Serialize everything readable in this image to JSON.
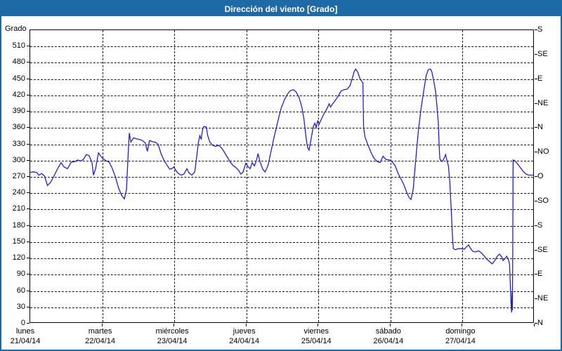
{
  "title": "Dirección del viento [Grado]",
  "axes": {
    "y_left_label": "Grado",
    "y_left_tick_labels": [
      "510",
      "480",
      "450",
      "420",
      "390",
      "360",
      "330",
      "300",
      "270",
      "240",
      "210",
      "180",
      "150",
      "120",
      "90",
      "60",
      "30",
      "0"
    ],
    "y_right_tick_labels_top_to_bottom": [
      "S",
      "SE",
      "E",
      "NE",
      "N",
      "NO",
      "O",
      "SO",
      "S",
      "SE",
      "E",
      "NE",
      "N"
    ],
    "x_day_labels": [
      {
        "name": "lunes",
        "date": "21/04/14"
      },
      {
        "name": "martes",
        "date": "22/04/14"
      },
      {
        "name": "miércoles",
        "date": "23/04/14"
      },
      {
        "name": "jueves",
        "date": "24/04/14"
      },
      {
        "name": "viernes",
        "date": "25/04/14"
      },
      {
        "name": "sábado",
        "date": "26/04/14"
      },
      {
        "name": "domingo",
        "date": "27/04/14"
      }
    ]
  },
  "colors": {
    "accent": "#1e6aa6",
    "line": "#2121c8",
    "grid": "#000000",
    "plot_border": "#000000",
    "title_text": "#ffffff",
    "background": "#ffffff"
  },
  "chart_data": {
    "type": "line",
    "title": "Dirección del viento [Grado]",
    "ylabel": "Grado",
    "ylim": [
      0,
      540
    ],
    "y_tick_step": 30,
    "right_axis_compass_step": 45,
    "grid": true,
    "x_unit": "days",
    "x_range_days": [
      0,
      7
    ],
    "categories": [
      "lunes 21/04/14",
      "martes 22/04/14",
      "miércoles 23/04/14",
      "jueves 24/04/14",
      "viernes 25/04/14",
      "sábado 26/04/14",
      "domingo 27/04/14"
    ],
    "series": [
      {
        "name": "wind_direction_deg",
        "points": [
          [
            0,
            277
          ],
          [
            0.04,
            278
          ],
          [
            0.09,
            277
          ],
          [
            0.12,
            272
          ],
          [
            0.16,
            275
          ],
          [
            0.2,
            270
          ],
          [
            0.24,
            253
          ],
          [
            0.28,
            258
          ],
          [
            0.33,
            270
          ],
          [
            0.38,
            284
          ],
          [
            0.43,
            295
          ],
          [
            0.47,
            287
          ],
          [
            0.52,
            284
          ],
          [
            0.57,
            296
          ],
          [
            0.62,
            297
          ],
          [
            0.66,
            300
          ],
          [
            0.7,
            298
          ],
          [
            0.74,
            301
          ],
          [
            0.78,
            310
          ],
          [
            0.82,
            308
          ],
          [
            0.86,
            295
          ],
          [
            0.88,
            272
          ],
          [
            0.91,
            284
          ],
          [
            0.95,
            313
          ],
          [
            1,
            304
          ],
          [
            1.05,
            299
          ],
          [
            1.1,
            296
          ],
          [
            1.14,
            285
          ],
          [
            1.18,
            271
          ],
          [
            1.23,
            248
          ],
          [
            1.27,
            235
          ],
          [
            1.31,
            228
          ],
          [
            1.34,
            245
          ],
          [
            1.37,
            330
          ],
          [
            1.38,
            350
          ],
          [
            1.4,
            333
          ],
          [
            1.44,
            341
          ],
          [
            1.48,
            339
          ],
          [
            1.52,
            338
          ],
          [
            1.56,
            336
          ],
          [
            1.6,
            332
          ],
          [
            1.63,
            316
          ],
          [
            1.66,
            336
          ],
          [
            1.7,
            334
          ],
          [
            1.74,
            333
          ],
          [
            1.78,
            329
          ],
          [
            1.82,
            312
          ],
          [
            1.86,
            300
          ],
          [
            1.9,
            291
          ],
          [
            1.94,
            283
          ],
          [
            1.97,
            284
          ],
          [
            2,
            287
          ],
          [
            2.03,
            280
          ],
          [
            2.06,
            275
          ],
          [
            2.1,
            272
          ],
          [
            2.14,
            274
          ],
          [
            2.18,
            284
          ],
          [
            2.21,
            276
          ],
          [
            2.25,
            272
          ],
          [
            2.29,
            278
          ],
          [
            2.32,
            310
          ],
          [
            2.34,
            332
          ],
          [
            2.36,
            345
          ],
          [
            2.38,
            338
          ],
          [
            2.4,
            358
          ],
          [
            2.42,
            362
          ],
          [
            2.45,
            361
          ],
          [
            2.47,
            345
          ],
          [
            2.5,
            333
          ],
          [
            2.54,
            327
          ],
          [
            2.58,
            325
          ],
          [
            2.62,
            327
          ],
          [
            2.66,
            323
          ],
          [
            2.7,
            315
          ],
          [
            2.74,
            306
          ],
          [
            2.78,
            297
          ],
          [
            2.82,
            290
          ],
          [
            2.86,
            286
          ],
          [
            2.9,
            281
          ],
          [
            2.93,
            274
          ],
          [
            2.96,
            277
          ],
          [
            3,
            294
          ],
          [
            3.03,
            288
          ],
          [
            3.06,
            284
          ],
          [
            3.09,
            295
          ],
          [
            3.12,
            289
          ],
          [
            3.15,
            300
          ],
          [
            3.17,
            312
          ],
          [
            3.2,
            296
          ],
          [
            3.24,
            282
          ],
          [
            3.27,
            278
          ],
          [
            3.31,
            290
          ],
          [
            3.35,
            315
          ],
          [
            3.39,
            340
          ],
          [
            3.44,
            368
          ],
          [
            3.49,
            395
          ],
          [
            3.54,
            412
          ],
          [
            3.58,
            422
          ],
          [
            3.62,
            428
          ],
          [
            3.66,
            430
          ],
          [
            3.7,
            426
          ],
          [
            3.74,
            416
          ],
          [
            3.78,
            398
          ],
          [
            3.81,
            375
          ],
          [
            3.84,
            340
          ],
          [
            3.86,
            323
          ],
          [
            3.88,
            318
          ],
          [
            3.91,
            340
          ],
          [
            3.94,
            362
          ],
          [
            3.96,
            368
          ],
          [
            3.98,
            360
          ],
          [
            4,
            372
          ],
          [
            4.02,
            366
          ],
          [
            4.05,
            375
          ],
          [
            4.09,
            386
          ],
          [
            4.13,
            395
          ],
          [
            4.16,
            404
          ],
          [
            4.18,
            398
          ],
          [
            4.21,
            404
          ],
          [
            4.25,
            411
          ],
          [
            4.29,
            419
          ],
          [
            4.33,
            428
          ],
          [
            4.37,
            430
          ],
          [
            4.41,
            431
          ],
          [
            4.45,
            437
          ],
          [
            4.48,
            450
          ],
          [
            4.51,
            464
          ],
          [
            4.53,
            468
          ],
          [
            4.56,
            462
          ],
          [
            4.59,
            450
          ],
          [
            4.62,
            444
          ],
          [
            4.63,
            443
          ],
          [
            4.64,
            360
          ],
          [
            4.66,
            342
          ],
          [
            4.7,
            328
          ],
          [
            4.74,
            315
          ],
          [
            4.78,
            304
          ],
          [
            4.83,
            297
          ],
          [
            4.87,
            295
          ],
          [
            4.91,
            307
          ],
          [
            4.95,
            301
          ],
          [
            5,
            300
          ],
          [
            5.04,
            296
          ],
          [
            5.08,
            289
          ],
          [
            5.12,
            275
          ],
          [
            5.16,
            265
          ],
          [
            5.2,
            254
          ],
          [
            5.24,
            240
          ],
          [
            5.27,
            231
          ],
          [
            5.3,
            227
          ],
          [
            5.33,
            246
          ],
          [
            5.36,
            292
          ],
          [
            5.4,
            352
          ],
          [
            5.44,
            396
          ],
          [
            5.48,
            431
          ],
          [
            5.51,
            456
          ],
          [
            5.54,
            467
          ],
          [
            5.57,
            468
          ],
          [
            5.59,
            463
          ],
          [
            5.61,
            450
          ],
          [
            5.64,
            428
          ],
          [
            5.66,
            400
          ],
          [
            5.68,
            368
          ],
          [
            5.69,
            330
          ],
          [
            5.7,
            302
          ],
          [
            5.73,
            297
          ],
          [
            5.76,
            303
          ],
          [
            5.78,
            310
          ],
          [
            5.8,
            299
          ],
          [
            5.82,
            289
          ],
          [
            5.84,
            258
          ],
          [
            5.86,
            205
          ],
          [
            5.88,
            150
          ],
          [
            5.89,
            136
          ],
          [
            5.92,
            134
          ],
          [
            5.95,
            136
          ],
          [
            6,
            136
          ],
          [
            6.04,
            135
          ],
          [
            6.07,
            139
          ],
          [
            6.1,
            143
          ],
          [
            6.13,
            136
          ],
          [
            6.16,
            131
          ],
          [
            6.2,
            130
          ],
          [
            6.24,
            132
          ],
          [
            6.28,
            128
          ],
          [
            6.32,
            122
          ],
          [
            6.36,
            116
          ],
          [
            6.4,
            111
          ],
          [
            6.43,
            108
          ],
          [
            6.46,
            113
          ],
          [
            6.5,
            122
          ],
          [
            6.53,
            126
          ],
          [
            6.56,
            121
          ],
          [
            6.58,
            114
          ],
          [
            6.61,
            118
          ],
          [
            6.63,
            122
          ],
          [
            6.65,
            118
          ],
          [
            6.67,
            108
          ],
          [
            6.68,
            75
          ],
          [
            6.69,
            38
          ],
          [
            6.7,
            18
          ],
          [
            6.705,
            55
          ],
          [
            6.71,
            22
          ],
          [
            6.715,
            130
          ],
          [
            6.72,
            300
          ],
          [
            6.75,
            298
          ],
          [
            6.78,
            293
          ],
          [
            6.82,
            286
          ],
          [
            6.86,
            279
          ],
          [
            6.9,
            274
          ],
          [
            6.94,
            272
          ],
          [
            7,
            272
          ]
        ]
      }
    ],
    "legend": false
  }
}
